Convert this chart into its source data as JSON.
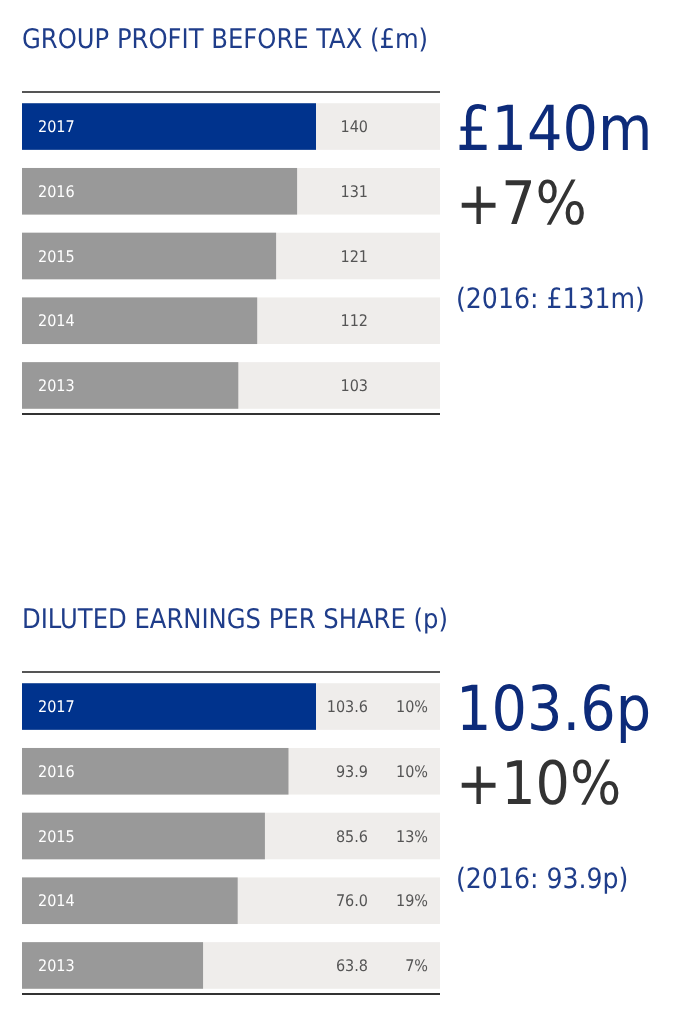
{
  "chart_data": [
    {
      "type": "bar",
      "orientation": "horizontal",
      "title": "GROUP PROFIT BEFORE TAX (£m)",
      "categories": [
        "2017",
        "2016",
        "2015",
        "2014",
        "2013"
      ],
      "values": [
        140,
        131,
        121,
        112,
        103
      ],
      "colors": [
        "#00338d",
        "#999999",
        "#999999",
        "#999999",
        "#999999"
      ],
      "data_labels": true,
      "annotations": [
        "£140m",
        "+7%",
        "(2016: £131m)"
      ]
    },
    {
      "type": "bar",
      "orientation": "horizontal",
      "title": "DILUTED EARNINGS PER SHARE (p)",
      "categories": [
        "2017",
        "2016",
        "2015",
        "2014",
        "2013"
      ],
      "values": [
        103.6,
        93.9,
        85.6,
        76.0,
        63.8
      ],
      "colors": [
        "#00338d",
        "#999999",
        "#999999",
        "#999999",
        "#999999"
      ],
      "data_labels": true,
      "value_labels": [
        "103.6",
        "93.9",
        "85.6",
        "76.0",
        "63.8"
      ],
      "annotations": [
        "103.6p",
        "+10%",
        "(2016: 93.9p)",
        "10%",
        "10%",
        "13%",
        "19%",
        "7%"
      ]
    }
  ]
}
